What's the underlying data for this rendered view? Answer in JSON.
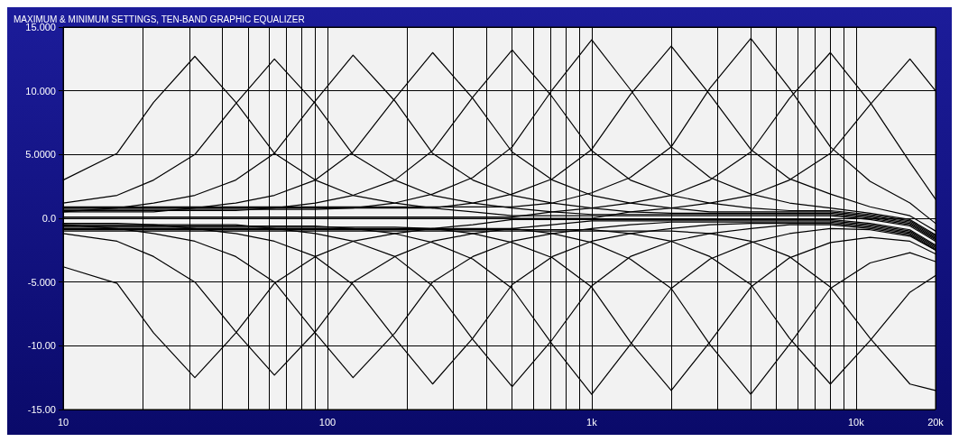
{
  "chart_data": {
    "type": "line",
    "title": "MAXIMUM & MINIMUM SETTINGS, TEN-BAND GRAPHIC EQUALIZER",
    "log": "x",
    "grid": true,
    "marker": "none",
    "line_style": "solid",
    "xlim": [
      10,
      20000
    ],
    "ylim": [
      -15,
      15
    ],
    "xticks": [
      {
        "value": 10,
        "label": "10"
      },
      {
        "value": 20,
        "label": null
      },
      {
        "value": 30,
        "label": null
      },
      {
        "value": 40,
        "label": null
      },
      {
        "value": 50,
        "label": null
      },
      {
        "value": 60,
        "label": null
      },
      {
        "value": 70,
        "label": null
      },
      {
        "value": 80,
        "label": null
      },
      {
        "value": 90,
        "label": null
      },
      {
        "value": 100,
        "label": "100"
      },
      {
        "value": 200,
        "label": null
      },
      {
        "value": 300,
        "label": null
      },
      {
        "value": 400,
        "label": null
      },
      {
        "value": 500,
        "label": null
      },
      {
        "value": 600,
        "label": null
      },
      {
        "value": 700,
        "label": null
      },
      {
        "value": 800,
        "label": null
      },
      {
        "value": 900,
        "label": null
      },
      {
        "value": 1000,
        "label": "1k"
      },
      {
        "value": 2000,
        "label": null
      },
      {
        "value": 3000,
        "label": null
      },
      {
        "value": 4000,
        "label": null
      },
      {
        "value": 5000,
        "label": null
      },
      {
        "value": 6000,
        "label": null
      },
      {
        "value": 7000,
        "label": null
      },
      {
        "value": 8000,
        "label": null
      },
      {
        "value": 9000,
        "label": null
      },
      {
        "value": 10000,
        "label": "10k"
      },
      {
        "value": 20000,
        "label": "20k"
      }
    ],
    "yticks": [
      {
        "value": -15,
        "label": "-15.00"
      },
      {
        "value": -10,
        "label": "-10.00"
      },
      {
        "value": -5,
        "label": "-5.000"
      },
      {
        "value": 0,
        "label": "0.0"
      },
      {
        "value": 5,
        "label": "5.0000"
      },
      {
        "value": 10,
        "label": "10.000"
      },
      {
        "value": 15,
        "label": "15.000"
      }
    ],
    "x": [
      10,
      16,
      22,
      31.5,
      45,
      63,
      90,
      125,
      180,
      250,
      355,
      500,
      710,
      1000,
      1400,
      2000,
      2800,
      4000,
      5600,
      8000,
      11300,
      16000,
      20000
    ],
    "series": [
      {
        "color": "#000000",
        "values": [
          3.0,
          5.1,
          9.1,
          12.7,
          9.1,
          5.1,
          3.0,
          1.8,
          1.2,
          0.8,
          0.5,
          0.2,
          0.2,
          0.2,
          0.2,
          0.2,
          0.2,
          0.2,
          0.2,
          0.2,
          -0.1,
          -0.6,
          -1.8
        ]
      },
      {
        "color": "#000000",
        "values": [
          1.2,
          1.8,
          3.0,
          5.0,
          9.0,
          12.5,
          9.0,
          5.0,
          3.0,
          1.8,
          1.2,
          0.8,
          0.5,
          0.3,
          0.3,
          0.3,
          0.3,
          0.3,
          0.3,
          0.3,
          0.0,
          -0.5,
          -1.7
        ]
      },
      {
        "color": "#000000",
        "values": [
          0.5,
          0.8,
          1.2,
          1.8,
          3.0,
          5.1,
          9.2,
          12.8,
          9.2,
          5.1,
          3.0,
          1.8,
          1.2,
          0.8,
          0.5,
          0.4,
          0.4,
          0.4,
          0.4,
          0.4,
          0.1,
          -0.4,
          -1.6
        ]
      },
      {
        "color": "#000000",
        "values": [
          0.5,
          0.5,
          0.5,
          0.8,
          1.2,
          1.8,
          3.0,
          5.2,
          9.4,
          13,
          9.4,
          5.2,
          3.0,
          1.8,
          1.2,
          0.8,
          0.5,
          0.5,
          0.5,
          0.5,
          0.2,
          -0.3,
          -1.5
        ]
      },
      {
        "color": "#000000",
        "values": [
          0.6,
          0.6,
          0.6,
          0.6,
          0.6,
          0.8,
          1.2,
          1.8,
          3.0,
          5.3,
          9.5,
          13.2,
          9.5,
          5.3,
          3.0,
          1.8,
          1.2,
          0.8,
          0.6,
          0.6,
          0.3,
          -0.2,
          -1.4
        ]
      },
      {
        "color": "#000000",
        "values": [
          0.7,
          0.7,
          0.7,
          0.7,
          0.7,
          0.7,
          0.7,
          0.8,
          1.2,
          1.9,
          3.2,
          5.6,
          10.1,
          14,
          10.1,
          5.6,
          3.2,
          1.9,
          1.2,
          0.8,
          0.4,
          -0.1,
          -1.3
        ]
      },
      {
        "color": "#000000",
        "values": [
          0.8,
          0.8,
          0.8,
          0.8,
          0.8,
          0.8,
          0.8,
          0.8,
          0.8,
          0.8,
          1.2,
          1.9,
          3.1,
          5.4,
          9.7,
          13.5,
          9.7,
          5.4,
          3.1,
          1.9,
          0.9,
          0.2,
          -1.0
        ]
      },
      {
        "color": "#000000",
        "values": [
          0.9,
          0.9,
          0.9,
          0.9,
          0.9,
          0.9,
          0.9,
          0.9,
          0.9,
          0.9,
          0.9,
          0.9,
          1.2,
          2.0,
          3.2,
          5.6,
          10.2,
          14.1,
          10.2,
          5.6,
          2.9,
          1.2,
          -0.4
        ]
      },
      {
        "color": "#000000",
        "values": [
          0.1,
          0.1,
          0.1,
          0.1,
          0.1,
          0.1,
          0.1,
          0.1,
          0.1,
          0.1,
          0.1,
          0.1,
          0.5,
          0.8,
          1.2,
          1.8,
          3.0,
          5.2,
          9.4,
          13,
          9.1,
          4.4,
          1.5
        ]
      },
      {
        "color": "#000000",
        "values": [
          0.0,
          0.0,
          0.0,
          0.0,
          0.0,
          0.0,
          0.0,
          0.0,
          0.0,
          0.0,
          0.0,
          0.0,
          0.0,
          0.0,
          0.5,
          0.8,
          1.2,
          1.8,
          3.0,
          5.1,
          8.9,
          12.5,
          10.0
        ]
      },
      {
        "color": "#000000",
        "values": [
          -3.8,
          -5.1,
          -9.0,
          -12.5,
          -9.0,
          -5.1,
          -3.0,
          -1.8,
          -1.2,
          -0.8,
          -0.5,
          -0.1,
          -0.1,
          -0.1,
          -0.1,
          -0.1,
          -0.1,
          -0.1,
          -0.1,
          -0.1,
          -0.4,
          -0.9,
          -2.1
        ]
      },
      {
        "color": "#000000",
        "values": [
          -1.2,
          -1.8,
          -3.0,
          -5.0,
          -8.9,
          -12.3,
          -8.9,
          -5.0,
          -3.0,
          -1.8,
          -1.2,
          -0.8,
          -0.5,
          -0.2,
          -0.2,
          -0.2,
          -0.2,
          -0.2,
          -0.2,
          -0.2,
          -0.5,
          -1.0,
          -2.2
        ]
      },
      {
        "color": "#000000",
        "values": [
          -0.5,
          -0.8,
          -1.2,
          -1.8,
          -3.0,
          -5.0,
          -9.0,
          -12.5,
          -9.0,
          -5.0,
          -3.0,
          -1.8,
          -1.2,
          -0.8,
          -0.5,
          -0.3,
          -0.3,
          -0.3,
          -0.3,
          -0.3,
          -0.6,
          -1.1,
          -2.3
        ]
      },
      {
        "color": "#000000",
        "values": [
          -0.4,
          -0.4,
          -0.5,
          -0.8,
          -1.2,
          -1.8,
          -3.0,
          -5.2,
          -9.4,
          -13,
          -9.4,
          -5.2,
          -3.0,
          -1.8,
          -1.2,
          -0.8,
          -0.5,
          -0.4,
          -0.4,
          -0.4,
          -0.7,
          -1.2,
          -2.4
        ]
      },
      {
        "color": "#000000",
        "values": [
          -0.5,
          -0.5,
          -0.5,
          -0.5,
          -0.5,
          -0.8,
          -1.2,
          -1.8,
          -3.0,
          -5.3,
          -9.5,
          -13.2,
          -9.5,
          -5.3,
          -3.0,
          -1.8,
          -1.2,
          -0.8,
          -0.5,
          -0.5,
          -0.8,
          -1.3,
          -2.5
        ]
      },
      {
        "color": "#000000",
        "values": [
          -0.6,
          -0.6,
          -0.6,
          -0.6,
          -0.6,
          -0.6,
          -0.6,
          -0.8,
          -1.2,
          -1.9,
          -3.2,
          -5.5,
          -9.9,
          -13.8,
          -9.9,
          -5.5,
          -3.2,
          -1.9,
          -1.2,
          -0.8,
          -0.9,
          -1.4,
          -2.5
        ]
      },
      {
        "color": "#000000",
        "values": [
          -0.7,
          -0.7,
          -0.7,
          -0.7,
          -0.7,
          -0.7,
          -0.7,
          -0.7,
          -0.7,
          -0.8,
          -1.2,
          -1.9,
          -3.1,
          -5.4,
          -9.7,
          -13.5,
          -9.7,
          -5.4,
          -3.1,
          -1.9,
          -1.5,
          -1.8,
          -2.8
        ]
      },
      {
        "color": "#000000",
        "values": [
          -0.8,
          -0.8,
          -0.8,
          -0.8,
          -0.8,
          -0.8,
          -0.8,
          -0.8,
          -0.8,
          -0.8,
          -0.8,
          -0.8,
          -1.2,
          -1.9,
          -3.2,
          -5.5,
          -9.9,
          -13.8,
          -9.9,
          -5.5,
          -3.5,
          -2.7,
          -3.4
        ]
      },
      {
        "color": "#000000",
        "values": [
          -0.9,
          -0.9,
          -0.9,
          -0.9,
          -0.9,
          -0.9,
          -0.9,
          -0.9,
          -0.9,
          -0.9,
          -0.9,
          -0.9,
          -0.9,
          -0.9,
          -1.2,
          -1.8,
          -3.0,
          -5.2,
          -9.4,
          -13,
          -9.6,
          -5.8,
          -4.5
        ]
      },
      {
        "color": "#000000",
        "values": [
          -1.0,
          -1.0,
          -1.0,
          -1.0,
          -1.0,
          -1.0,
          -1.0,
          -1.0,
          -1.0,
          -1.0,
          -1.0,
          -1.0,
          -1.0,
          -1.0,
          -1.0,
          -1.0,
          -1.2,
          -1.8,
          -3.0,
          -5.4,
          -9.4,
          -13.0,
          -13.5
        ]
      }
    ]
  }
}
